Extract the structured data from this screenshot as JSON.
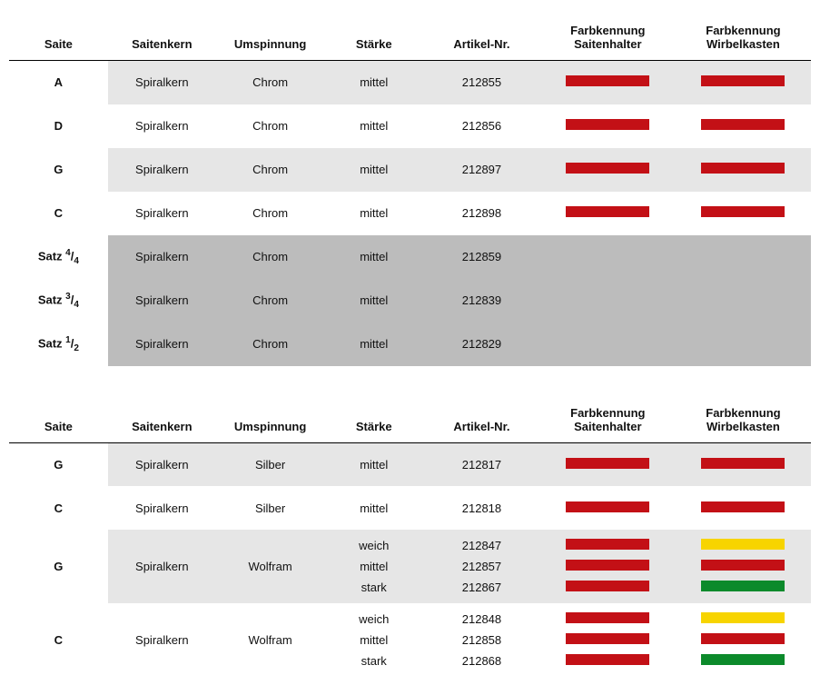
{
  "headers": {
    "saite": "Saite",
    "saitenkern": "Saitenkern",
    "umspinnung": "Umspinnung",
    "staerke": "Stärke",
    "artikel": "Artikel-Nr.",
    "farb_saitenhalter": "Farbkennung Saitenhalter",
    "farb_wirbelkasten": "Farbkennung Wirbelkasten"
  },
  "colors": {
    "red": "#c31016",
    "yellow": "#f7d400",
    "green": "#0c8a2b",
    "band_light": "#e6e6e6",
    "band_dark": "#bcbcbc",
    "band_white": "#ffffff"
  },
  "table1": {
    "rows": [
      {
        "saite": "A",
        "kern": "Spiralkern",
        "ump": "Chrom",
        "stk": "mittel",
        "art": "212855",
        "c1": "red",
        "c2": "red",
        "band": "light"
      },
      {
        "saite": "D",
        "kern": "Spiralkern",
        "ump": "Chrom",
        "stk": "mittel",
        "art": "212856",
        "c1": "red",
        "c2": "red",
        "band": "white"
      },
      {
        "saite": "G",
        "kern": "Spiralkern",
        "ump": "Chrom",
        "stk": "mittel",
        "art": "212897",
        "c1": "red",
        "c2": "red",
        "band": "light"
      },
      {
        "saite": "C",
        "kern": "Spiralkern",
        "ump": "Chrom",
        "stk": "mittel",
        "art": "212898",
        "c1": "red",
        "c2": "red",
        "band": "white"
      },
      {
        "saite_html": "Satz <span class=\"frac-sup\">4</span>/<span class=\"frac-sub\">4</span>",
        "kern": "Spiralkern",
        "ump": "Chrom",
        "stk": "mittel",
        "art": "212859",
        "band": "dark"
      },
      {
        "saite_html": "Satz <span class=\"frac-sup\">3</span>/<span class=\"frac-sub\">4</span>",
        "kern": "Spiralkern",
        "ump": "Chrom",
        "stk": "mittel",
        "art": "212839",
        "band": "dark"
      },
      {
        "saite_html": "Satz <span class=\"frac-sup\">1</span>/<span class=\"frac-sub\">2</span>",
        "kern": "Spiralkern",
        "ump": "Chrom",
        "stk": "mittel",
        "art": "212829",
        "band": "dark"
      }
    ]
  },
  "table2": {
    "rows": [
      {
        "saite": "G",
        "kern": "Spiralkern",
        "ump": "Silber",
        "stk": "mittel",
        "art": "212817",
        "c1": "red",
        "c2": "red",
        "band": "light"
      },
      {
        "saite": "C",
        "kern": "Spiralkern",
        "ump": "Silber",
        "stk": "mittel",
        "art": "212818",
        "c1": "red",
        "c2": "red",
        "band": "white"
      },
      {
        "saite": "G",
        "kern": "Spiralkern",
        "ump": "Wolfram",
        "band": "light",
        "multi": [
          {
            "stk": "weich",
            "art": "212847",
            "c1": "red",
            "c2": "yellow"
          },
          {
            "stk": "mittel",
            "art": "212857",
            "c1": "red",
            "c2": "red"
          },
          {
            "stk": "stark",
            "art": "212867",
            "c1": "red",
            "c2": "green"
          }
        ]
      },
      {
        "saite": "C",
        "kern": "Spiralkern",
        "ump": "Wolfram",
        "band": "white",
        "multi": [
          {
            "stk": "weich",
            "art": "212848",
            "c1": "red",
            "c2": "yellow"
          },
          {
            "stk": "mittel",
            "art": "212858",
            "c1": "red",
            "c2": "red"
          },
          {
            "stk": "stark",
            "art": "212868",
            "c1": "red",
            "c2": "green"
          }
        ]
      }
    ]
  }
}
